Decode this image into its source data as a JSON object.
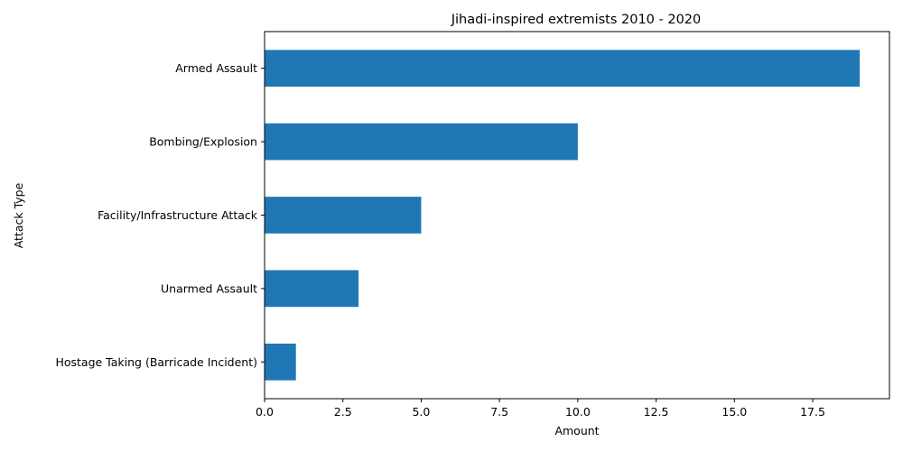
{
  "chart_data": {
    "type": "bar",
    "orientation": "horizontal",
    "title": "Jihadi-inspired extremists 2010 - 2020",
    "xlabel": "Amount",
    "ylabel": "Attack Type",
    "categories": [
      "Hostage Taking (Barricade Incident)",
      "Unarmed Assault",
      "Facility/Infrastructure Attack",
      "Bombing/Explosion",
      "Armed Assault"
    ],
    "values": [
      1,
      3,
      5,
      10,
      19
    ],
    "xlim": [
      0,
      19.95
    ],
    "xticks": [
      "0.0",
      "2.5",
      "5.0",
      "7.5",
      "10.0",
      "12.5",
      "15.0",
      "17.5"
    ],
    "bar_color": "#1f77b4",
    "grid": false,
    "legend": "none"
  }
}
